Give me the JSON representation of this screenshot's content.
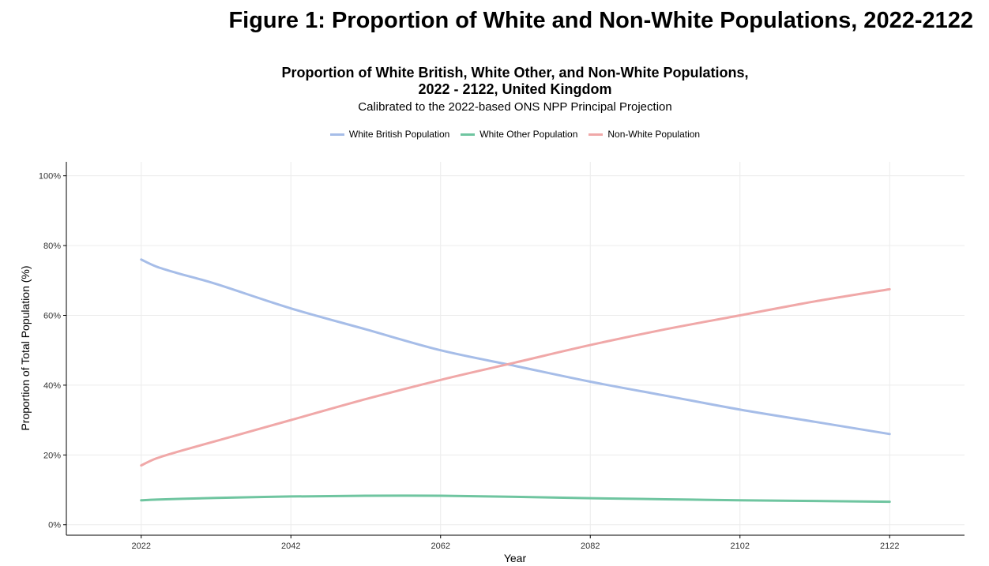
{
  "figure_title": "Figure 1: Proportion of White and Non-White Populations, 2022-2122",
  "chart_data": {
    "type": "line",
    "title_line1": "Proportion of White British, White Other, and Non-White Populations,",
    "title_line2": "2022 - 2122, United Kingdom",
    "subtitle": "Calibrated to the 2022-based ONS NPP Principal Projection",
    "xlabel": "Year",
    "ylabel": "Proportion of Total Population (%)",
    "xlim": [
      2012,
      2132
    ],
    "ylim": [
      -3,
      104
    ],
    "x_ticks": [
      2022,
      2042,
      2062,
      2082,
      2102,
      2122
    ],
    "y_ticks": [
      0,
      20,
      40,
      60,
      80,
      100
    ],
    "y_tick_labels": [
      "0%",
      "20%",
      "40%",
      "60%",
      "80%",
      "100%"
    ],
    "grid": true,
    "legend_position": "top",
    "x": [
      2022,
      2024,
      2027,
      2032,
      2042,
      2052,
      2062,
      2072,
      2082,
      2092,
      2102,
      2112,
      2122
    ],
    "series": [
      {
        "name": "White British Population",
        "color": "#a6bde8",
        "values": [
          76,
          74,
          72,
          69,
          62,
          56,
          50,
          45.5,
          41,
          37,
          33,
          29.5,
          26
        ]
      },
      {
        "name": "White Other Population",
        "color": "#6fc5a0",
        "values": [
          7,
          7.2,
          7.4,
          7.7,
          8.1,
          8.3,
          8.3,
          8.0,
          7.6,
          7.3,
          7.0,
          6.8,
          6.6
        ]
      },
      {
        "name": "Non-White Population",
        "color": "#f0a8a8",
        "values": [
          17,
          19,
          21,
          24,
          30,
          36,
          41.5,
          46.5,
          51.5,
          56,
          60,
          64,
          67.5
        ]
      }
    ]
  }
}
